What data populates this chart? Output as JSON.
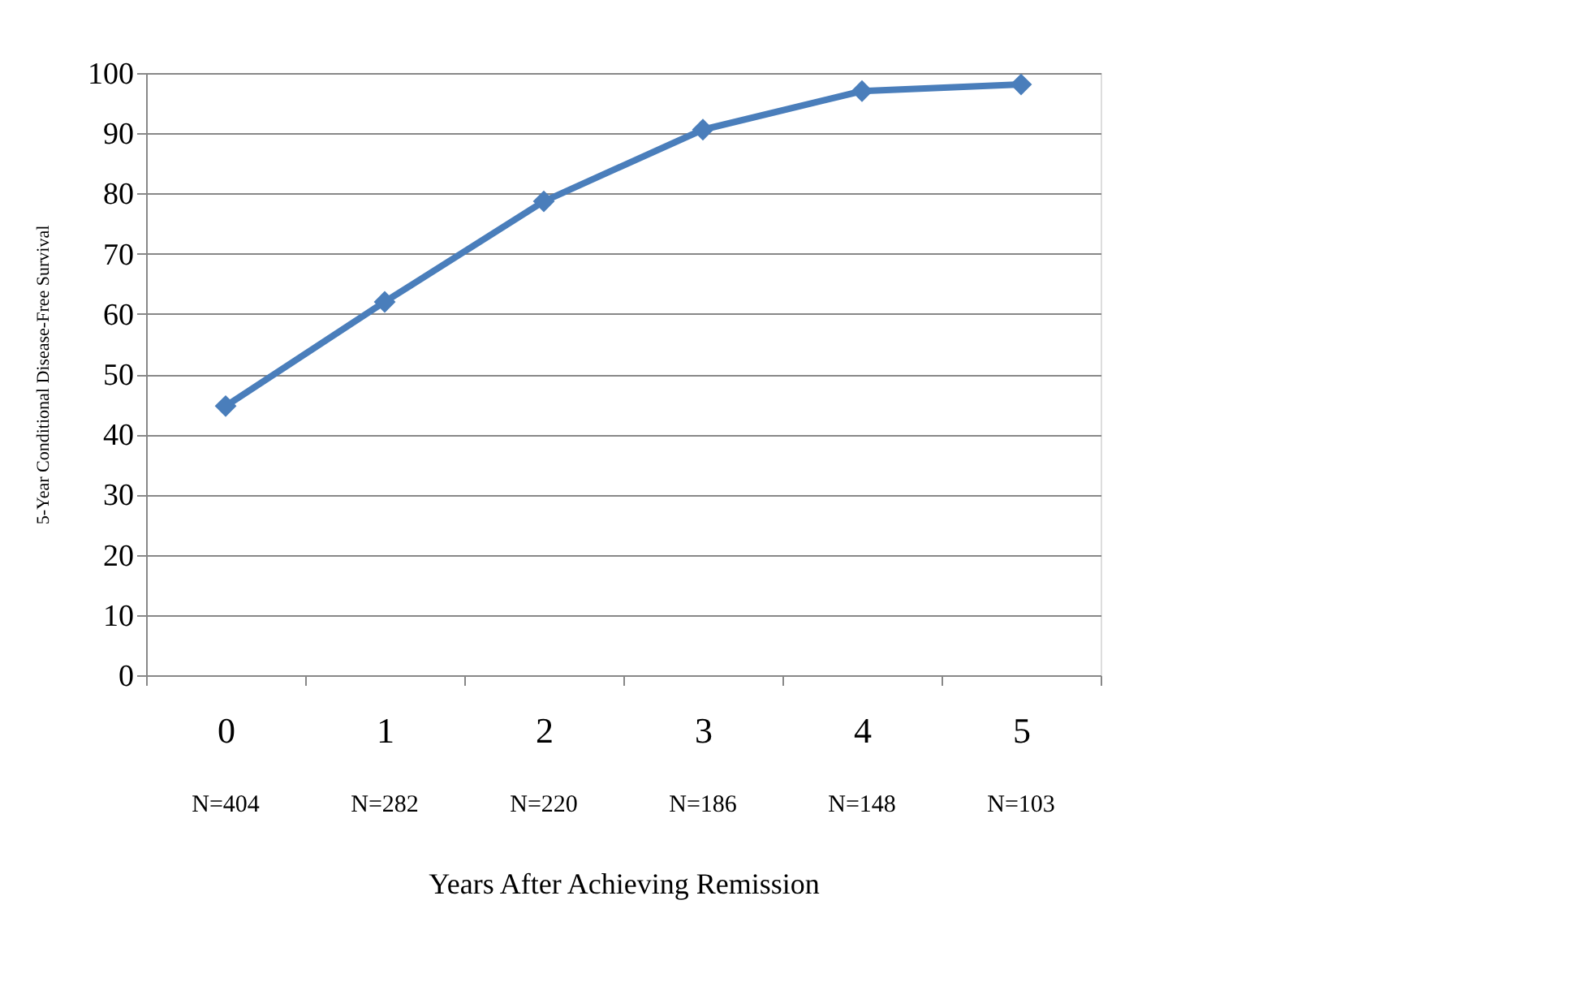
{
  "chart_data": {
    "type": "line",
    "xlabel": "Years After Achieving Remission",
    "ylabel": "5-Year Conditional Disease-Free Survival",
    "categories": [
      "0",
      "1",
      "2",
      "3",
      "4",
      "5"
    ],
    "series": [
      {
        "color": "#4a7ebb",
        "values": [
          44.7,
          62.0,
          78.7,
          90.6,
          97.0,
          98.1
        ]
      }
    ],
    "ylim": [
      0,
      100
    ],
    "yticks": [
      0,
      10,
      20,
      30,
      40,
      50,
      60,
      70,
      80,
      90,
      100
    ],
    "grid": "y",
    "marker": "diamond",
    "line_style": "solid",
    "annotations": [
      "N=404",
      "N=282",
      "N=220",
      "N=186",
      "N=148",
      "N=103"
    ]
  }
}
